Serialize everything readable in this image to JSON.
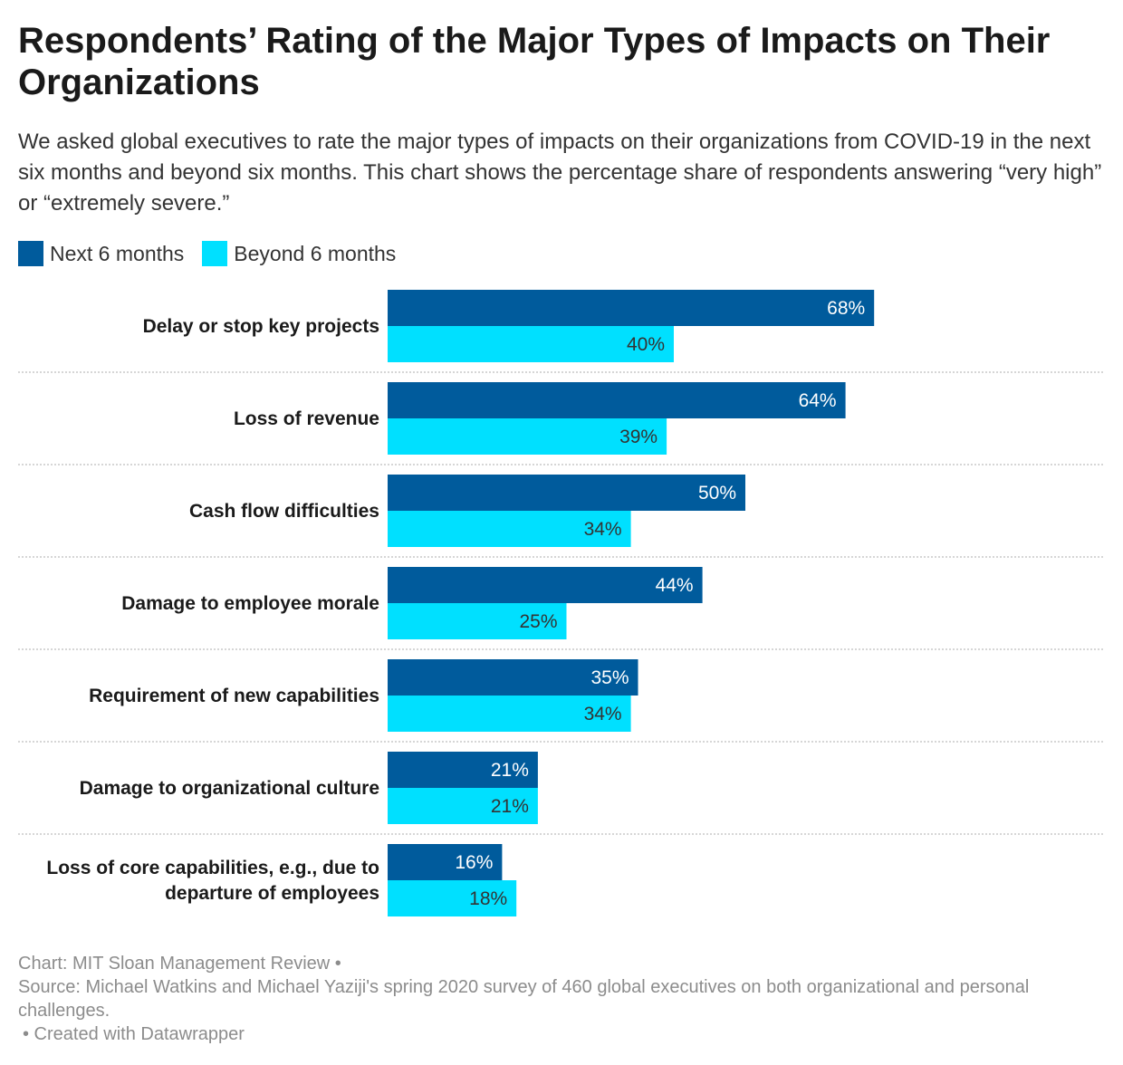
{
  "header": {
    "title": "Respondents’ Rating of the Major Types of Impacts on Their Organizations",
    "subtitle": "We asked global executives to rate the major types of impacts on their organizations from COVID-19 in the next six months and beyond six months. This chart shows the percentage share of respondents answering “very high” or “extremely severe.”"
  },
  "legend": [
    {
      "label": "Next 6 months",
      "color": "#005b9c"
    },
    {
      "label": "Beyond 6 months",
      "color": "#00e0ff"
    }
  ],
  "chart_data": {
    "type": "bar",
    "orientation": "horizontal",
    "categories": [
      [
        "Delay or stop key projects"
      ],
      [
        "Loss of revenue"
      ],
      [
        "Cash flow difficulties"
      ],
      [
        "Damage to employee morale"
      ],
      [
        "Requirement of new capabilities"
      ],
      [
        "Damage to organizational culture"
      ],
      [
        "Loss of core capabilities, e.g., due to",
        "departure of employees"
      ]
    ],
    "series": [
      {
        "name": "Next 6 months",
        "color": "#005b9c",
        "label_color": "#ffffff",
        "values": [
          68,
          64,
          50,
          44,
          35,
          21,
          16
        ]
      },
      {
        "name": "Beyond 6 months",
        "color": "#00e0ff",
        "label_color": "#333333",
        "values": [
          40,
          39,
          34,
          25,
          34,
          21,
          18
        ]
      }
    ],
    "value_suffix": "%",
    "xlim": [
      0,
      100
    ],
    "grid": false,
    "legend_position": "top-left"
  },
  "footer": {
    "chart_credit": "Chart: MIT Sloan Management Review •",
    "source": "Source: Michael Watkins and Michael Yaziji's spring 2020 survey of 460 global executives on both organizational and personal challenges.",
    "created_with": "• Created with Datawrapper"
  }
}
